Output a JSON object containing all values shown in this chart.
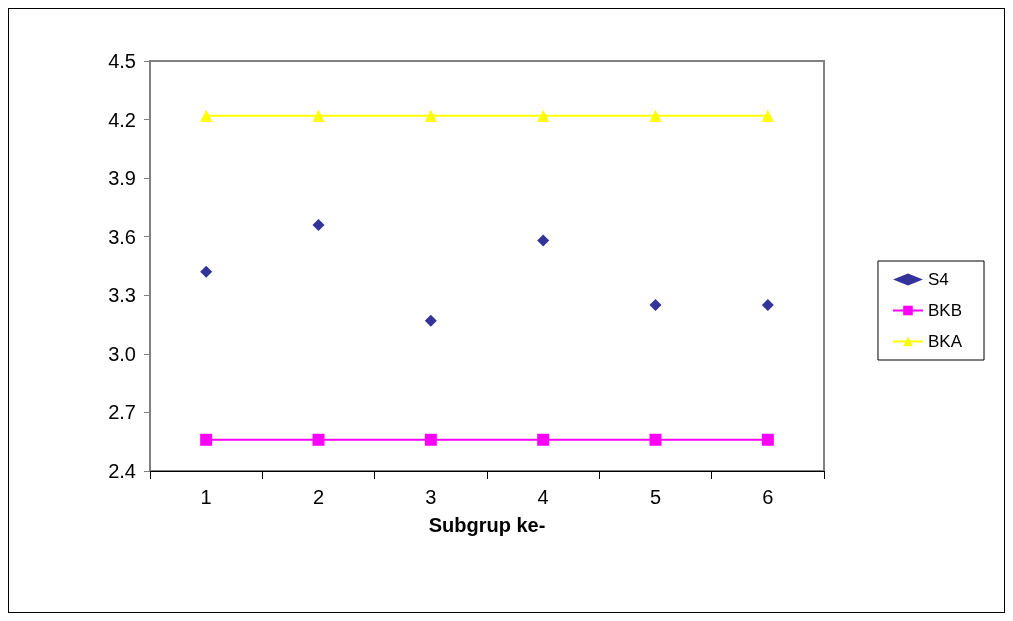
{
  "chart_data": {
    "type": "line",
    "xlabel": "Subgrup ke-",
    "categories": [
      "1",
      "2",
      "3",
      "4",
      "5",
      "6"
    ],
    "series": [
      {
        "name": "S4",
        "type": "scatter",
        "marker": "diamond",
        "color": "#000080",
        "values": [
          3.42,
          3.66,
          3.17,
          3.58,
          3.25,
          3.25
        ]
      },
      {
        "name": "BKB",
        "type": "line",
        "marker": "square",
        "color": "#ff00ff",
        "values": [
          2.56,
          2.56,
          2.56,
          2.56,
          2.56,
          2.56
        ]
      },
      {
        "name": "BKA",
        "type": "line",
        "marker": "triangle",
        "color": "#ffff00",
        "values": [
          4.22,
          4.22,
          4.22,
          4.22,
          4.22,
          4.22
        ]
      }
    ],
    "ylim": [
      2.4,
      4.5
    ],
    "yticks": [
      {
        "value": 2.4,
        "label": "2.4"
      },
      {
        "value": 2.7,
        "label": "2.7"
      },
      {
        "value": 3.0,
        "label": "3.0"
      },
      {
        "value": 3.3,
        "label": "3.3"
      },
      {
        "value": 3.6,
        "label": "3.6"
      },
      {
        "value": 3.9,
        "label": "3.9"
      },
      {
        "value": 4.2,
        "label": "4.2"
      },
      {
        "value": 4.5,
        "label": "4.5"
      }
    ],
    "grid": false,
    "legend": "right"
  }
}
